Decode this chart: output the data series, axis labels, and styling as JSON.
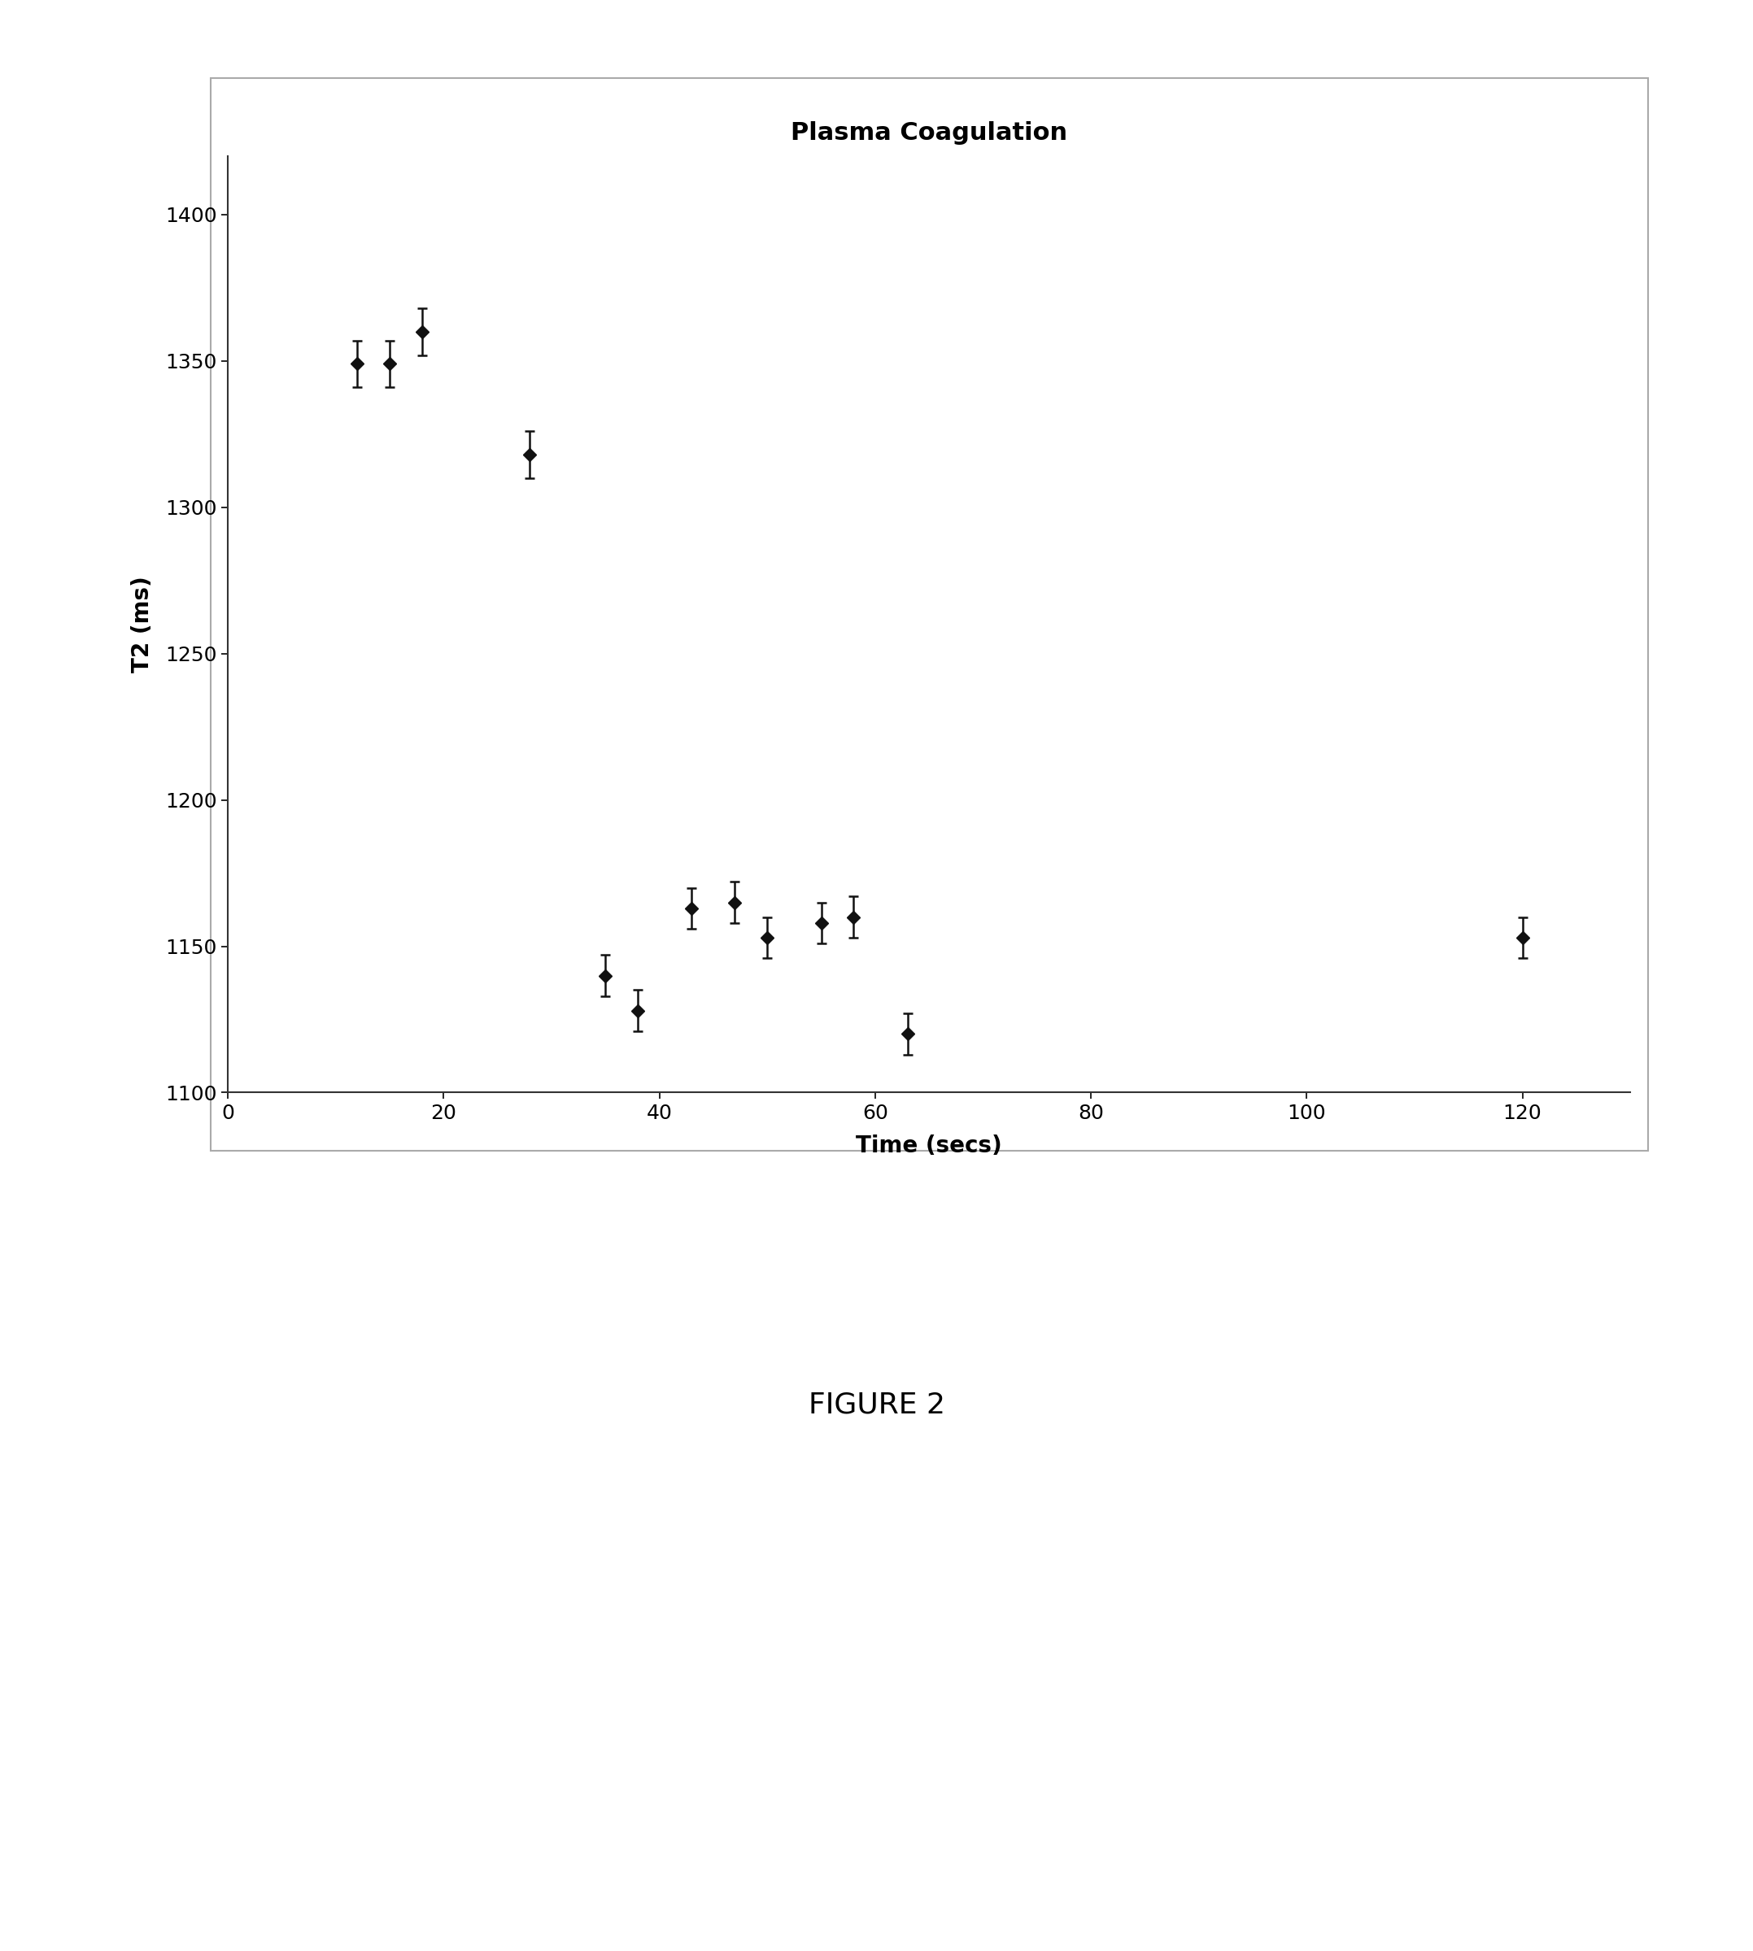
{
  "title": "Plasma Coagulation",
  "xlabel": "Time (secs)",
  "ylabel": "T2 (ms)",
  "xlim": [
    0,
    130
  ],
  "ylim": [
    1100,
    1420
  ],
  "xticks": [
    0,
    20,
    40,
    60,
    80,
    100,
    120
  ],
  "yticks": [
    1100,
    1150,
    1200,
    1250,
    1300,
    1350,
    1400
  ],
  "x": [
    12,
    15,
    18,
    28,
    35,
    38,
    43,
    47,
    50,
    55,
    58,
    63,
    120
  ],
  "y": [
    1349,
    1349,
    1360,
    1318,
    1140,
    1128,
    1163,
    1165,
    1153,
    1158,
    1160,
    1120,
    1153
  ],
  "yerr": [
    8,
    8,
    8,
    8,
    7,
    7,
    7,
    7,
    7,
    7,
    7,
    7,
    7
  ],
  "marker_color": "#111111",
  "marker_size": 8,
  "ecolor": "#111111",
  "elinewidth": 1.8,
  "capsize": 4,
  "capthick": 1.8,
  "title_fontsize": 22,
  "label_fontsize": 20,
  "tick_fontsize": 18,
  "figure_label": "FIGURE 2",
  "figure_label_fontsize": 26,
  "background_color": "#ffffff",
  "plot_bg_color": "#ffffff",
  "frame_color": "#aaaaaa"
}
